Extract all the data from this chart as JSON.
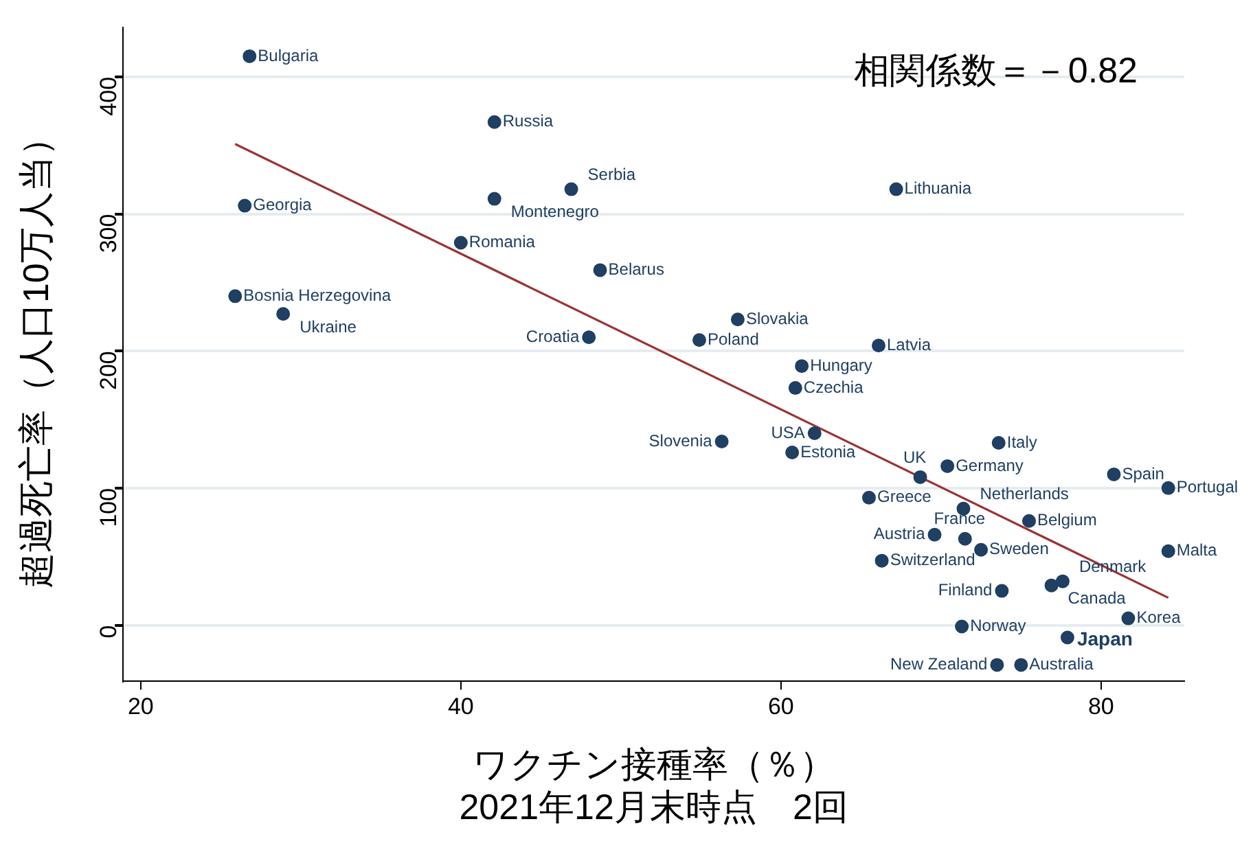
{
  "chart_data": {
    "type": "scatter",
    "xlabel": "ワクチン接種率（％）\n2021年12月末時点　2回",
    "ylabel": "超過死亡率（人口10万人当）",
    "xlim": [
      18.9,
      85.2
    ],
    "ylim": [
      -41,
      436
    ],
    "xticks": [
      20,
      40,
      60,
      80
    ],
    "yticks": [
      0,
      100,
      200,
      300,
      400
    ],
    "grid": "y",
    "legend": false,
    "marker": "circle",
    "series": [
      {
        "type": "scatter",
        "color": "#1f3f63",
        "x": [
          26.8,
          42.1,
          26.5,
          42.1,
          46.9,
          40.0,
          48.7,
          25.9,
          28.9,
          48.0,
          57.3,
          54.9,
          67.2,
          66.1,
          61.3,
          60.9,
          56.3,
          62.1,
          60.7,
          73.6,
          68.7,
          70.4,
          80.8,
          84.2,
          65.5,
          71.4,
          75.5,
          69.6,
          71.5,
          72.5,
          66.3,
          84.2,
          77.6,
          76.9,
          73.8,
          81.7,
          71.3,
          77.9,
          73.5,
          75.0
        ],
        "values": [
          415,
          367,
          306,
          311,
          318,
          279,
          259,
          240,
          227,
          210,
          223,
          208,
          318,
          204,
          189,
          173,
          134,
          140,
          126,
          133,
          108,
          116,
          110,
          100,
          93,
          85,
          76,
          66,
          63,
          55,
          47,
          54,
          32,
          29,
          25,
          5,
          -1,
          -9,
          -29,
          -29
        ]
      },
      {
        "type": "line",
        "color": "#9b3434",
        "marker": "none",
        "x": [
          25.9,
          84.2
        ],
        "values": [
          351,
          20
        ]
      }
    ],
    "annotations": [
      "相関係数＝－0.82",
      {
        "text": "Bulgaria",
        "x": 26.8,
        "y": 415
      },
      {
        "text": "Russia",
        "x": 42.1,
        "y": 367
      },
      {
        "text": "Georgia",
        "x": 26.5,
        "y": 306
      },
      {
        "text": "Montenegro",
        "x": 42.1,
        "y": 311
      },
      {
        "text": "Serbia",
        "x": 46.9,
        "y": 318
      },
      {
        "text": "Romania",
        "x": 40.0,
        "y": 279
      },
      {
        "text": "Belarus",
        "x": 48.7,
        "y": 259
      },
      {
        "text": "Bosnia Herzegovina",
        "x": 25.9,
        "y": 240
      },
      {
        "text": "Ukraine",
        "x": 28.9,
        "y": 227
      },
      {
        "text": "Croatia",
        "x": 48.0,
        "y": 210
      },
      {
        "text": "Slovakia",
        "x": 57.3,
        "y": 223
      },
      {
        "text": "Poland",
        "x": 54.9,
        "y": 208
      },
      {
        "text": "Lithuania",
        "x": 67.2,
        "y": 318
      },
      {
        "text": "Latvia",
        "x": 66.1,
        "y": 204
      },
      {
        "text": "Hungary",
        "x": 61.3,
        "y": 189
      },
      {
        "text": "Czechia",
        "x": 60.9,
        "y": 173
      },
      {
        "text": "Slovenia",
        "x": 56.3,
        "y": 134
      },
      {
        "text": "USA",
        "x": 62.1,
        "y": 140
      },
      {
        "text": "Estonia",
        "x": 60.7,
        "y": 126
      },
      {
        "text": "Italy",
        "x": 73.6,
        "y": 133
      },
      {
        "text": "UK",
        "x": 68.7,
        "y": 108
      },
      {
        "text": "Germany",
        "x": 70.4,
        "y": 116
      },
      {
        "text": "Spain",
        "x": 80.8,
        "y": 110
      },
      {
        "text": "Portugal",
        "x": 84.2,
        "y": 100
      },
      {
        "text": "Greece",
        "x": 65.5,
        "y": 93
      },
      {
        "text": "Netherlands",
        "x": 71.4,
        "y": 85
      },
      {
        "text": "Belgium",
        "x": 75.5,
        "y": 76
      },
      {
        "text": "Austria",
        "x": 69.6,
        "y": 66
      },
      {
        "text": "France",
        "x": 71.5,
        "y": 63
      },
      {
        "text": "Sweden",
        "x": 72.5,
        "y": 55
      },
      {
        "text": "Switzerland",
        "x": 66.3,
        "y": 47
      },
      {
        "text": "Malta",
        "x": 84.2,
        "y": 54
      },
      {
        "text": "Denmark",
        "x": 77.6,
        "y": 32
      },
      {
        "text": "Canada",
        "x": 76.9,
        "y": 29
      },
      {
        "text": "Finland",
        "x": 73.8,
        "y": 25
      },
      {
        "text": "Korea",
        "x": 81.7,
        "y": 5
      },
      {
        "text": "Norway",
        "x": 71.3,
        "y": -1
      },
      {
        "text": "Japan",
        "x": 77.9,
        "y": -9
      },
      {
        "text": "New Zealand",
        "x": 73.5,
        "y": -29
      },
      {
        "text": "Australia",
        "x": 75.0,
        "y": -29
      }
    ]
  }
}
